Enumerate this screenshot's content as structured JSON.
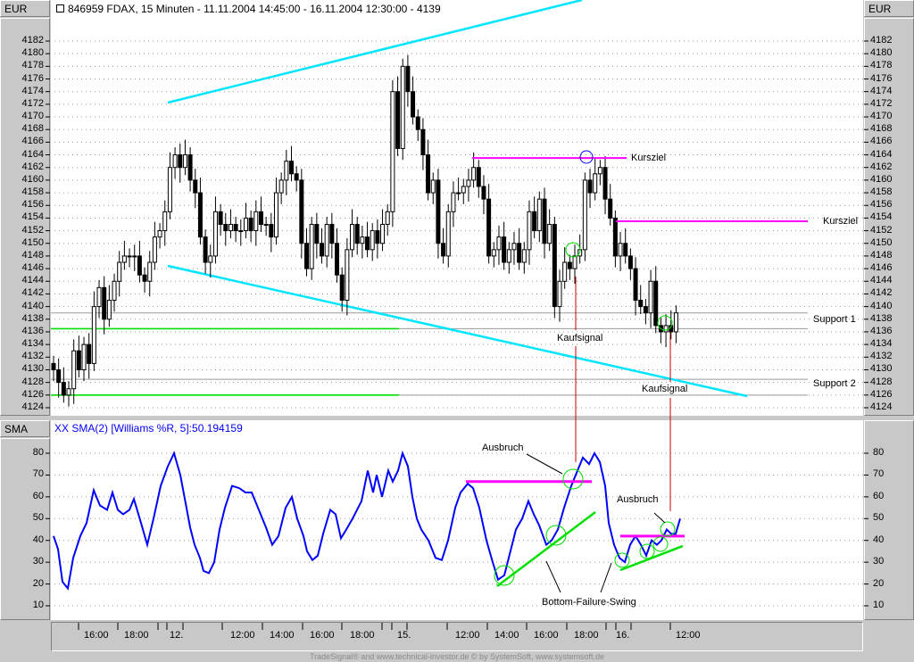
{
  "header": {
    "currency_left": "EUR",
    "currency_right": "EUR",
    "title": "846959  FDAX, 15 Minuten - 11.11.2004 14:45:00 - 16.11.2004 12:30:00 - 4139",
    "title_icon": "crosshair-icon"
  },
  "indicator": {
    "axis_label": "SMA",
    "title": "XX SMA(2) [Williams %R, 5]:50.194159"
  },
  "footer": "TradeSignal® and www.technical-investor.de © by SystemSoft, www.systemsoft.de",
  "annotations": {
    "kursziel_1": "Kursziel",
    "kursziel_2": "Kursziel",
    "support_1": "Support 1",
    "support_2": "Support 2",
    "kaufsignal_1": "Kaufsignal",
    "kaufsignal_2": "Kaufsignal",
    "ausbruch_1": "Ausbruch",
    "ausbruch_2": "Ausbruch",
    "bottom_failure_swing": "Bottom-Failure-Swing"
  },
  "colors": {
    "trendline": "#00e5ff",
    "target": "#ff00ff",
    "support": "#00e000",
    "signal_line": "#cc0000",
    "indicator_line": "#0000ff",
    "circle_green": "#00e000",
    "circle_blue": "#0000ff"
  },
  "chart_data": [
    {
      "type": "candlestick",
      "title": "846959  FDAX, 15 Minuten - 11.11.2004 14:45:00 - 16.11.2004 12:30:00 - 4139",
      "ylabel": "EUR",
      "ylim": [
        4123,
        4186
      ],
      "yticks": [
        4124,
        4126,
        4128,
        4130,
        4132,
        4134,
        4136,
        4138,
        4140,
        4142,
        4144,
        4146,
        4148,
        4150,
        4152,
        4154,
        4156,
        4158,
        4160,
        4162,
        4164,
        4166,
        4168,
        4170,
        4172,
        4174,
        4176,
        4178,
        4180,
        4182
      ],
      "grid": true,
      "closes": [
        4130,
        4128,
        4126,
        4127,
        4133,
        4130,
        4134,
        4131,
        4140,
        4143,
        4138,
        4141,
        4144,
        4147,
        4148,
        4148,
        4148,
        4145,
        4144,
        4147,
        4151,
        4152,
        4155,
        4162,
        4164,
        4162,
        4164,
        4160,
        4158,
        4151,
        4147,
        4148,
        4155,
        4153,
        4152,
        4153,
        4152,
        4152,
        4154,
        4152,
        4155,
        4153,
        4153,
        4151,
        4158,
        4160,
        4163,
        4161,
        4160,
        4150,
        4146,
        4153,
        4150,
        4148,
        4153,
        4150,
        4145,
        4141,
        4149,
        4153,
        4150,
        4151,
        4149,
        4152,
        4150,
        4153,
        4155,
        4174,
        4165,
        4178,
        4174,
        4170,
        4168,
        4164,
        4158,
        4160,
        4150,
        4148,
        4155,
        4158,
        4158,
        4159,
        4160,
        4162,
        4159,
        4157,
        4148,
        4149,
        4151,
        4147,
        4149,
        4150,
        4147,
        4149,
        4155,
        4152,
        4157,
        4150,
        4153,
        4140,
        4144,
        4147,
        4146,
        4148,
        4149,
        4160,
        4158,
        4161,
        4162,
        4157,
        4154,
        4148,
        4150,
        4148,
        4146,
        4141,
        4140,
        4139,
        4144,
        4137,
        4136,
        4137,
        4136,
        4139
      ],
      "levels": {
        "kursziel_1": 4163.5,
        "kursziel_2": 4153.5,
        "support_1": [
          4139,
          4136.5
        ],
        "support_2": [
          4128.5,
          4126
        ]
      }
    },
    {
      "type": "line",
      "title": "XX SMA(2) [Williams %R, 5]:50.194159",
      "ylabel": "SMA",
      "ylim": [
        5,
        88
      ],
      "yticks": [
        10,
        20,
        30,
        40,
        50,
        60,
        70,
        80
      ],
      "grid": true,
      "values": [
        42,
        36,
        21,
        18,
        32,
        42,
        48,
        63,
        56,
        54,
        62,
        54,
        52,
        54,
        59,
        48,
        38,
        50,
        65,
        74,
        80,
        70,
        57,
        46,
        38,
        32,
        26,
        25,
        30,
        45,
        55,
        65,
        64,
        62,
        62,
        54,
        46,
        38,
        42,
        55,
        60,
        50,
        42,
        35,
        31,
        33,
        43,
        54,
        52,
        41,
        45,
        50,
        58,
        72,
        62,
        70,
        60,
        72,
        67,
        72,
        80,
        74,
        60,
        50,
        45,
        40,
        32,
        31,
        40,
        55,
        62,
        66,
        64,
        55,
        40,
        30,
        22,
        24,
        32,
        45,
        50,
        58,
        52,
        47,
        38,
        40,
        45,
        55,
        65,
        72,
        78,
        75,
        80,
        76,
        65,
        48,
        38,
        32,
        30,
        38,
        42,
        38,
        33,
        40,
        38,
        40,
        45,
        43,
        43,
        50
      ],
      "levels": {
        "ausbruch_1": 67,
        "ausbruch_2": 42
      }
    }
  ],
  "time_axis": {
    "labels": [
      "16:00",
      "18:00",
      "12.",
      "12:00",
      "14:00",
      "16:00",
      "18:00",
      "15.",
      "12:00",
      "14:00",
      "16:00",
      "18:00",
      "16.",
      "12:00"
    ]
  }
}
